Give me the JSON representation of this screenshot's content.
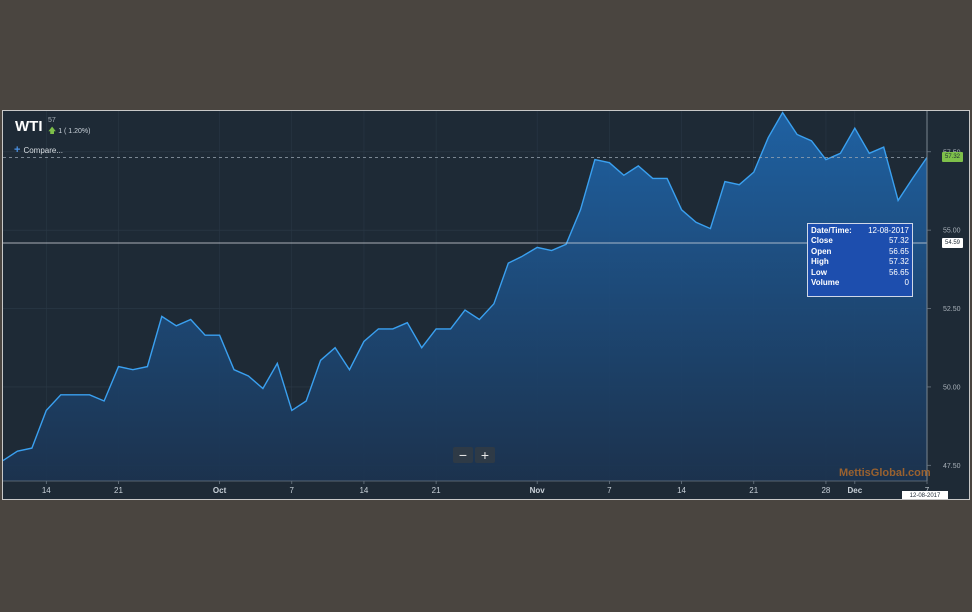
{
  "header": {
    "symbol": "WTI",
    "last_price": "57",
    "change": "1 ( 1.20%)",
    "compare_label": "Compare..."
  },
  "zoom": {
    "out_label": "−",
    "in_label": "+"
  },
  "watermark": "MettisGlobal.com",
  "tooltip": {
    "rows": [
      {
        "label": "Date/Time:",
        "value": "12-08-2017"
      },
      {
        "label": "Close",
        "value": "57.32"
      },
      {
        "label": "Open",
        "value": "56.65"
      },
      {
        "label": "High",
        "value": "57.32"
      },
      {
        "label": "Low",
        "value": "56.65"
      },
      {
        "label": "Volume",
        "value": "0"
      }
    ]
  },
  "price_tags": {
    "close": "57.32",
    "cursor": "54.59"
  },
  "date_tag": "12-08-2017",
  "colors": {
    "background": "#1e2a36",
    "line": "#3aa0f0",
    "close_tag": "#7ec04a",
    "tooltip": "#1d4eae",
    "watermark": "#b06a2a"
  },
  "chart_data": {
    "type": "area",
    "ylim": [
      47.0,
      58.8
    ],
    "yticks": [
      47.5,
      50.0,
      52.5,
      55.0,
      57.5
    ],
    "ytick_labels": [
      "47.50",
      "50.00",
      "52.50",
      "55.00",
      "57.50"
    ],
    "x": [
      0,
      1,
      2,
      3,
      4,
      5,
      6,
      7,
      8,
      9,
      10,
      11,
      12,
      13,
      14,
      15,
      16,
      17,
      18,
      19,
      20,
      21,
      22,
      23,
      24,
      25,
      26,
      27,
      28,
      29,
      30,
      31,
      32,
      33,
      34,
      35,
      35.9,
      37,
      38,
      39,
      40,
      41,
      42,
      43,
      44,
      45,
      46,
      47,
      48,
      49,
      50,
      51,
      52,
      53,
      54,
      55,
      56,
      57,
      58,
      59,
      60,
      61,
      62,
      63,
      64
    ],
    "values": [
      47.65,
      47.95,
      48.05,
      49.25,
      49.75,
      49.75,
      49.75,
      49.55,
      50.65,
      50.55,
      50.65,
      52.25,
      51.95,
      52.15,
      51.65,
      51.65,
      50.55,
      50.35,
      49.95,
      50.75,
      49.25,
      49.55,
      50.85,
      51.25,
      50.55,
      51.45,
      51.85,
      51.85,
      52.05,
      51.25,
      51.85,
      51.85,
      52.45,
      52.15,
      52.65,
      53.95,
      54.15,
      54.45,
      54.35,
      54.55,
      55.65,
      57.25,
      57.15,
      56.75,
      57.05,
      56.65,
      56.65,
      55.65,
      55.25,
      55.05,
      56.55,
      56.45,
      56.85,
      57.95,
      58.75,
      58.05,
      57.85,
      57.25,
      57.45,
      58.25,
      57.45,
      57.65,
      55.95,
      56.65,
      57.32
    ],
    "x_ticks": [
      {
        "x": 3,
        "label": "14",
        "bold": false
      },
      {
        "x": 8,
        "label": "21",
        "bold": false
      },
      {
        "x": 15,
        "label": "Oct",
        "bold": true
      },
      {
        "x": 20,
        "label": "7",
        "bold": false
      },
      {
        "x": 25,
        "label": "14",
        "bold": false
      },
      {
        "x": 30,
        "label": "21",
        "bold": false
      },
      {
        "x": 37,
        "label": "Nov",
        "bold": true
      },
      {
        "x": 42,
        "label": "7",
        "bold": false
      },
      {
        "x": 47,
        "label": "14",
        "bold": false
      },
      {
        "x": 52,
        "label": "21",
        "bold": false
      },
      {
        "x": 57,
        "label": "28",
        "bold": false
      },
      {
        "x": 59,
        "label": "Dec",
        "bold": true
      },
      {
        "x": 64,
        "label": "7",
        "bold": false
      }
    ],
    "last_close": 57.32,
    "cursor_value": 54.59,
    "grid": true,
    "legend": "none"
  }
}
